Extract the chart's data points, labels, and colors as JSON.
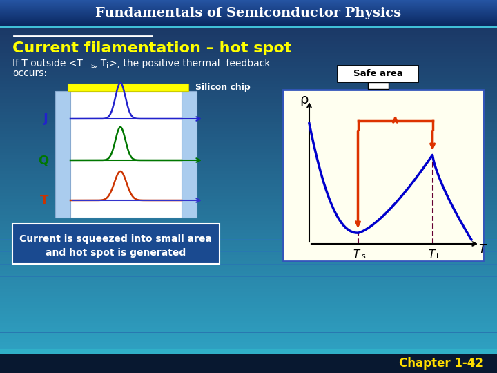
{
  "title": "Fundamentals of Semiconductor Physics",
  "slide_title": "Current filamentation – hot spot",
  "silicon_chip_label": "Silicon chip",
  "safe_area_label": "Safe area",
  "j_label": "J",
  "q_label": "Q",
  "t_label": "T",
  "rho_label": "ρ",
  "temp_label": "T",
  "bottom_text_line1": "Current is squeezed into small area",
  "bottom_text_line2": "and hot spot is generated",
  "chapter_label": "Chapter 1-42",
  "bg_top": "#1a5080",
  "bg_bottom": "#30a0c0",
  "title_bar_top": "#0a2860",
  "title_bar_bottom": "#2050a0",
  "plot_bg": "#fffff0",
  "blue_color": "#0000cc",
  "green_color": "#007700",
  "orange_color": "#cc3300",
  "yellow_color": "#ffff00",
  "white_color": "#ffffff",
  "black_color": "#000000",
  "gold_color": "#ffdd00",
  "light_blue_panel": "#aaccee",
  "bracket_color": "#dd3300",
  "dashed_color": "#660033",
  "bottom_bar_color": "#081830",
  "teal_line_color": "#20a8c0"
}
